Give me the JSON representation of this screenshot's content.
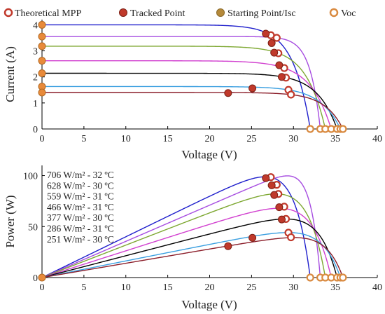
{
  "chart_data": [
    {
      "type": "line",
      "xlabel": "Voltage (V)",
      "ylabel": "Current (A)",
      "xlim": [
        0,
        40
      ],
      "ylim": [
        0,
        4.2
      ],
      "xticks": [
        "0",
        "5",
        "10",
        "15",
        "20",
        "25",
        "30",
        "35",
        "40"
      ],
      "yticks": [
        "0",
        "1",
        "2",
        "3",
        "4"
      ],
      "legend": {
        "position": "top",
        "entries": [
          "Theoretical MPP",
          "Tracked Point",
          "Starting Point/Isc",
          "Voc"
        ]
      },
      "series": [
        {
          "isc": 4.0,
          "voc": 32.0,
          "mpp": [
            27.3,
            3.6
          ],
          "tracked": [
            26.7,
            3.66
          ],
          "color": "#1f1fcc"
        },
        {
          "isc": 3.55,
          "voc": 33.2,
          "mpp": [
            28.0,
            3.5
          ],
          "tracked": [
            27.4,
            3.3
          ],
          "color": "#a64ce0"
        },
        {
          "isc": 3.18,
          "voc": 33.8,
          "mpp": [
            28.2,
            2.91
          ],
          "tracked": [
            27.7,
            2.93
          ],
          "color": "#7ea832"
        },
        {
          "isc": 2.62,
          "voc": 34.5,
          "mpp": [
            28.9,
            2.34
          ],
          "tracked": [
            28.3,
            2.45
          ],
          "color": "#d13fcf"
        },
        {
          "isc": 2.14,
          "voc": 35.2,
          "mpp": [
            29.1,
            1.97
          ],
          "tracked": [
            28.6,
            2.0
          ],
          "color": "#000000"
        },
        {
          "isc": 1.63,
          "voc": 35.6,
          "mpp": [
            29.4,
            1.5
          ],
          "tracked": [
            25.1,
            1.56
          ],
          "color": "#3a9fe0"
        },
        {
          "isc": 1.4,
          "voc": 35.9,
          "mpp": [
            29.7,
            1.32
          ],
          "tracked": [
            22.2,
            1.38
          ],
          "color": "#8b1e2a"
        }
      ]
    },
    {
      "type": "line",
      "xlabel": "Voltage (V)",
      "ylabel": "Power (W)",
      "xlim": [
        0,
        40
      ],
      "ylim": [
        0,
        110
      ],
      "xticks": [
        "0",
        "5",
        "10",
        "15",
        "20",
        "25",
        "30",
        "35",
        "40"
      ],
      "yticks": [
        "0",
        "50",
        "100"
      ],
      "series": [
        {
          "name": "706 W/m² - 32 ºC",
          "mpp": [
            27.3,
            98.5
          ],
          "tracked": [
            26.7,
            97.5
          ],
          "color": "#1f1fcc"
        },
        {
          "name": "628 W/m² - 30 ºC",
          "mpp": [
            28.0,
            91.0
          ],
          "tracked": [
            27.4,
            90.5
          ],
          "color": "#a64ce0"
        },
        {
          "name": "559 W/m² - 31 ºC",
          "mpp": [
            28.2,
            82.0
          ],
          "tracked": [
            27.7,
            81.0
          ],
          "color": "#7ea832"
        },
        {
          "name": "466 W/m² - 31 ºC",
          "mpp": [
            28.9,
            69.5
          ],
          "tracked": [
            28.3,
            69.0
          ],
          "color": "#d13fcf"
        },
        {
          "name": "377 W/m² - 30 ºC",
          "mpp": [
            29.1,
            57.5
          ],
          "tracked": [
            28.6,
            57.0
          ],
          "color": "#000000"
        },
        {
          "name": "286 W/m² - 31 ºC",
          "mpp": [
            29.4,
            44.0
          ],
          "tracked": [
            25.1,
            39.0
          ],
          "color": "#3a9fe0"
        },
        {
          "name": "251 W/m² - 30 ºC",
          "mpp": [
            29.7,
            39.5
          ],
          "tracked": [
            22.2,
            30.8
          ],
          "color": "#8b1e2a"
        }
      ]
    }
  ]
}
